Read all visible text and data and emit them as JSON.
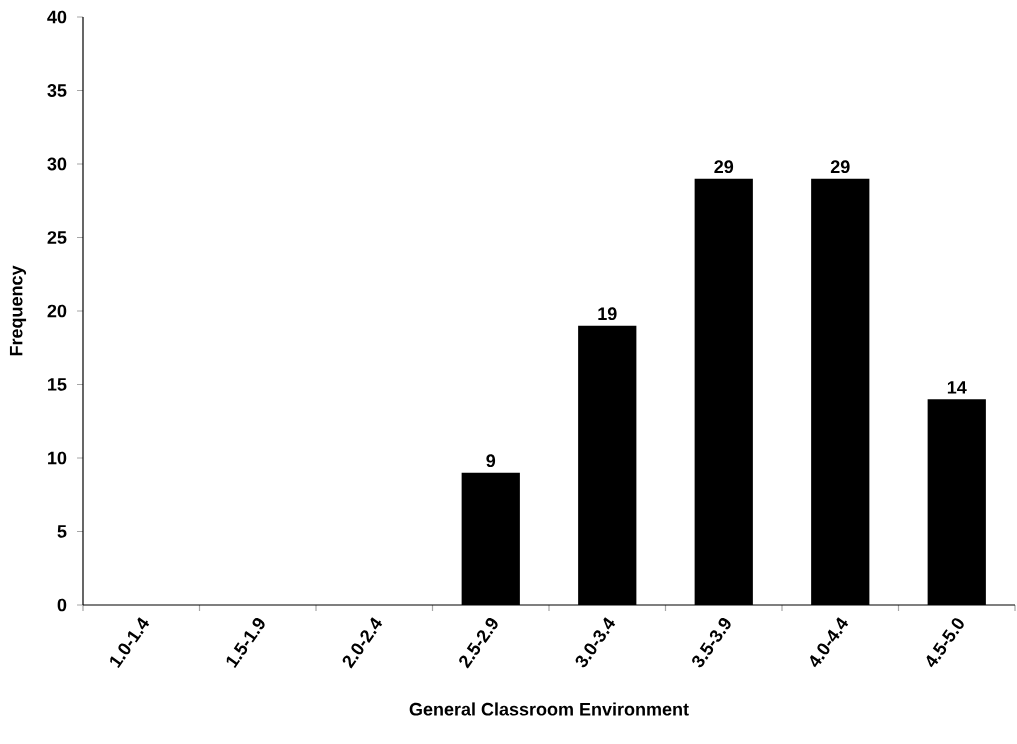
{
  "chart_data": {
    "type": "bar",
    "categories": [
      "1.0-1.4",
      "1.5-1.9",
      "2.0-2.4",
      "2.5-2.9",
      "3.0-3.4",
      "3.5-3.9",
      "4.0-4.4",
      "4.5-5.0"
    ],
    "values": [
      0,
      0,
      0,
      9,
      19,
      29,
      29,
      14
    ],
    "value_labels": [
      null,
      null,
      null,
      "9",
      "19",
      "29",
      "29",
      "14"
    ],
    "color": "#000000",
    "xlabel": "General Classroom Environment",
    "ylabel": "Frequency",
    "ylim": [
      0,
      40
    ],
    "yticks": [
      0,
      5,
      10,
      15,
      20,
      25,
      30,
      35,
      40
    ]
  }
}
